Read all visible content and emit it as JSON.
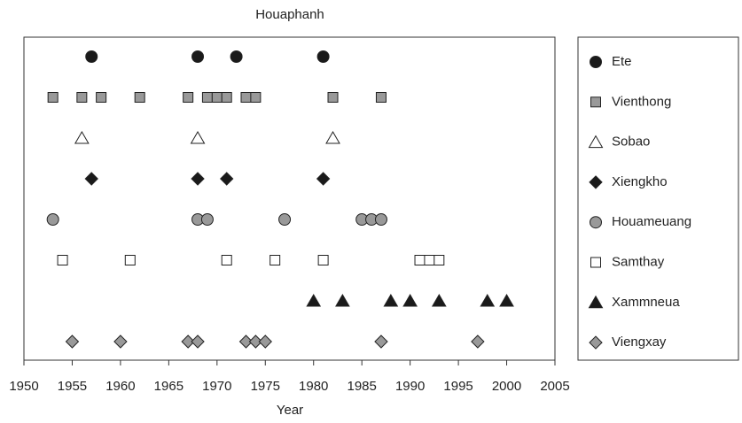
{
  "chart_data": {
    "type": "dot",
    "title": "Houaphanh",
    "xlabel": "Year",
    "xlim": [
      1950,
      2005
    ],
    "xticks": [
      1950,
      1955,
      1960,
      1965,
      1970,
      1975,
      1980,
      1985,
      1990,
      1995,
      2000,
      2005
    ],
    "series": [
      {
        "name": "Ete",
        "marker": "circle",
        "color": "#1a1a1a",
        "x": [
          1957,
          1968,
          1972,
          1981
        ]
      },
      {
        "name": "Vienthong",
        "marker": "square",
        "color": "#999999",
        "x": [
          1953,
          1956,
          1958,
          1962,
          1967,
          1969,
          1970,
          1971,
          1973,
          1974,
          1982,
          1987
        ]
      },
      {
        "name": "Sobao",
        "marker": "triangle",
        "color": "#ffffff",
        "x": [
          1956,
          1968,
          1982
        ]
      },
      {
        "name": "Xiengkho",
        "marker": "diamond",
        "color": "#1a1a1a",
        "x": [
          1957,
          1968,
          1971,
          1981
        ]
      },
      {
        "name": "Houameuang",
        "marker": "circle",
        "color": "#999999",
        "x": [
          1953,
          1968,
          1969,
          1977,
          1985,
          1986,
          1987
        ]
      },
      {
        "name": "Samthay",
        "marker": "square",
        "color": "#ffffff",
        "x": [
          1954,
          1961,
          1971,
          1976,
          1981,
          1991,
          1992,
          1993
        ]
      },
      {
        "name": "Xammneua",
        "marker": "triangle",
        "color": "#1a1a1a",
        "x": [
          1980,
          1983,
          1988,
          1990,
          1993,
          1998,
          2000
        ]
      },
      {
        "name": "Viengxay",
        "marker": "diamond",
        "color": "#999999",
        "x": [
          1955,
          1960,
          1967,
          1968,
          1973,
          1974,
          1975,
          1987,
          1997
        ]
      }
    ]
  }
}
